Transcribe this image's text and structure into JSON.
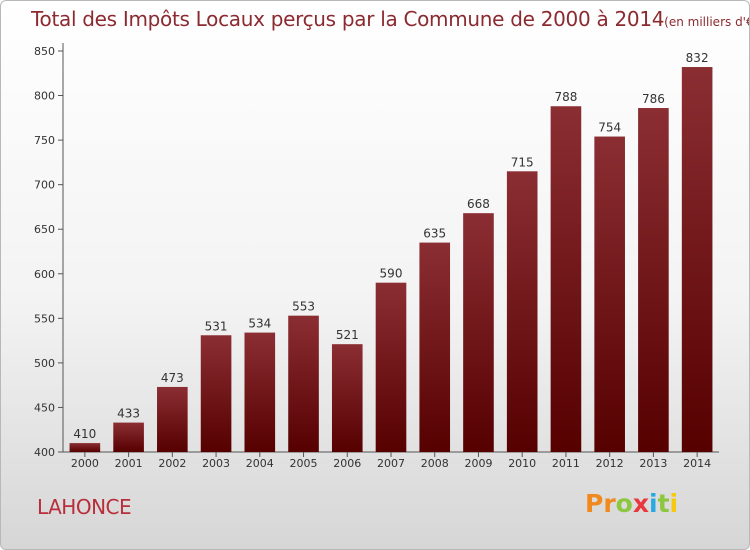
{
  "title": "Total des Impôts Locaux perçus par la Commune de 2000 à 2014",
  "title_unit": "(en milliers d'€)",
  "commune": "LAHONCE",
  "logo": {
    "text": "Proxiti",
    "colors": [
      "#f08a1e",
      "#f08a1e",
      "#8dc63f",
      "#e8383d",
      "#29a9e1",
      "#8dc63f",
      "#f6c90e"
    ]
  },
  "chart_data": {
    "type": "bar",
    "categories": [
      "2000",
      "2001",
      "2002",
      "2003",
      "2004",
      "2005",
      "2006",
      "2007",
      "2008",
      "2009",
      "2010",
      "2011",
      "2012",
      "2013",
      "2014"
    ],
    "values": [
      410,
      433,
      473,
      531,
      534,
      553,
      521,
      590,
      635,
      668,
      715,
      788,
      754,
      786,
      832
    ],
    "value_labels": [
      "410",
      "433",
      "473",
      "531",
      "534",
      "553",
      "521",
      "590",
      "635",
      "668",
      "715",
      "788",
      "754",
      "786",
      "832"
    ],
    "ylim": [
      400,
      850
    ],
    "yticks": [
      400,
      450,
      500,
      550,
      600,
      650,
      700,
      750,
      800,
      850
    ],
    "grid": false,
    "bar_color_top": "#8b2e33",
    "bar_color_bottom": "#560000"
  }
}
